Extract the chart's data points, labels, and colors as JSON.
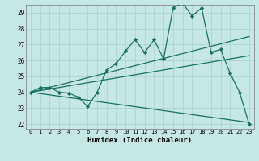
{
  "xlabel": "Humidex (Indice chaleur)",
  "xlim": [
    -0.5,
    23.5
  ],
  "ylim": [
    21.7,
    29.5
  ],
  "yticks": [
    22,
    23,
    24,
    25,
    26,
    27,
    28,
    29
  ],
  "xticks": [
    0,
    1,
    2,
    3,
    4,
    5,
    6,
    7,
    8,
    9,
    10,
    11,
    12,
    13,
    14,
    15,
    16,
    17,
    18,
    19,
    20,
    21,
    22,
    23
  ],
  "bg_color": "#c5e8e4",
  "grid_color": "#a8d0cc",
  "line_color": "#1a7060",
  "line1_x": [
    0,
    1,
    2,
    3,
    4,
    5,
    6,
    7,
    8,
    9,
    10,
    11,
    12,
    13,
    14,
    15,
    16,
    17,
    18,
    19,
    20,
    21,
    22,
    23
  ],
  "line1_y": [
    24.0,
    24.3,
    24.3,
    24.0,
    23.95,
    23.7,
    23.1,
    24.0,
    25.4,
    25.8,
    26.6,
    27.3,
    26.5,
    27.3,
    26.1,
    29.3,
    29.6,
    28.8,
    29.3,
    26.5,
    26.7,
    25.2,
    24.0,
    22.0
  ],
  "line2_x": [
    0,
    23
  ],
  "line2_y": [
    24.0,
    27.5
  ],
  "line3_x": [
    0,
    23
  ],
  "line3_y": [
    24.0,
    26.3
  ],
  "line4_x": [
    0,
    23
  ],
  "line4_y": [
    24.0,
    22.1
  ]
}
